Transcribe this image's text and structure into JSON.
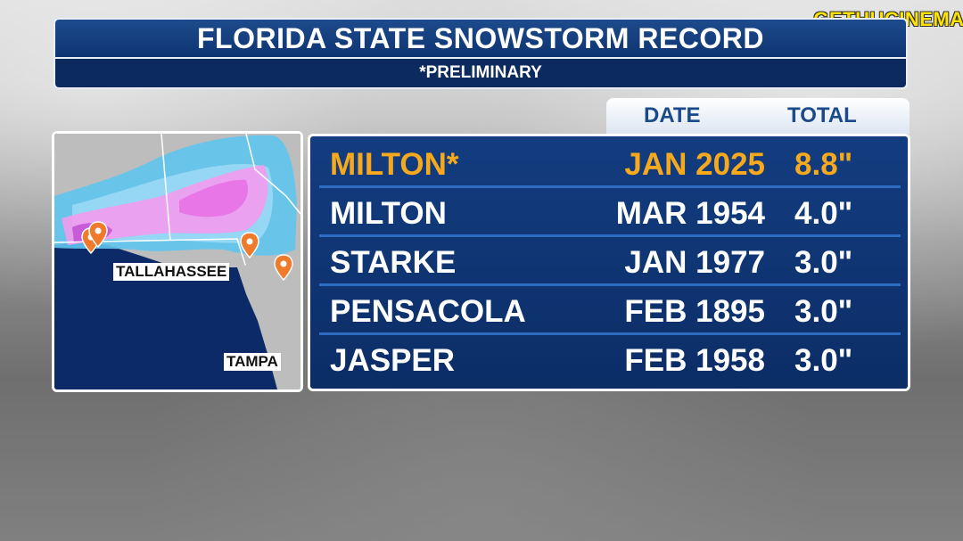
{
  "watermark": "GETHUCINEMA",
  "title": "FLORIDA STATE SNOWSTORM RECORD",
  "subtitle": "*PRELIMINARY",
  "columns": {
    "date": "DATE",
    "total": "TOTAL"
  },
  "rows": [
    {
      "location": "MILTON*",
      "date": "JAN 2025",
      "total": "8.8\"",
      "highlight": true
    },
    {
      "location": "MILTON",
      "date": "MAR 1954",
      "total": "4.0\"",
      "highlight": false
    },
    {
      "location": "STARKE",
      "date": "JAN 1977",
      "total": "3.0\"",
      "highlight": false
    },
    {
      "location": "PENSACOLA",
      "date": "FEB 1895",
      "total": "3.0\"",
      "highlight": false
    },
    {
      "location": "JASPER",
      "date": "FEB 1958",
      "total": "3.0\"",
      "highlight": false
    }
  ],
  "map": {
    "labels": {
      "tallahassee": "TALLAHASSEE",
      "tampa": "TAMPA"
    },
    "pin_icon": "map-pin-icon",
    "colors": {
      "highlight": "#f6a91d",
      "pin": "#f07a2c",
      "snow_pink": "#f39bf0",
      "snow_blue": "#5fc4ee"
    }
  }
}
